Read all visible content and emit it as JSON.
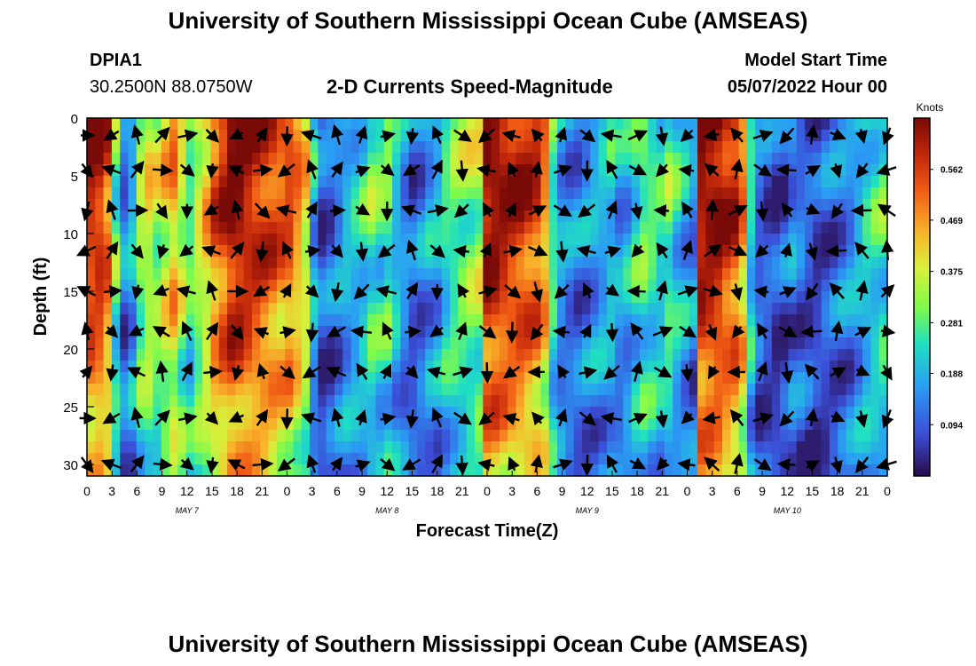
{
  "header": {
    "title": "University of Southern Mississippi Ocean Cube (AMSEAS)",
    "station": "DPIA1",
    "coords": "30.2500N  88.0750W",
    "subtitle": "2-D Currents Speed-Magnitude",
    "model_start_label": "Model Start Time",
    "model_start_value": "05/07/2022 Hour 00"
  },
  "footer": {
    "title": "University of Southern Mississippi Ocean Cube (AMSEAS)"
  },
  "chart_data": {
    "type": "heatmap",
    "xlabel": "Forecast Time(Z)",
    "ylabel": "Depth (ft)",
    "x_ticks": [
      "0",
      "3",
      "6",
      "9",
      "12",
      "15",
      "18",
      "21",
      "0",
      "3",
      "6",
      "9",
      "12",
      "15",
      "18",
      "21",
      "0",
      "3",
      "6",
      "9",
      "12",
      "15",
      "18",
      "21",
      "0",
      "3",
      "6",
      "9",
      "12",
      "15",
      "18",
      "21",
      "0"
    ],
    "y_ticks": [
      "0",
      "5",
      "10",
      "15",
      "20",
      "25",
      "30"
    ],
    "xlim": [
      0,
      96
    ],
    "ylim": [
      0,
      31
    ],
    "day_labels": [
      "MAY 7",
      "MAY 8",
      "MAY 9",
      "MAY 10"
    ],
    "colorbar": {
      "unit": "Knots",
      "ticks": [
        "0.562",
        "0.469",
        "0.375",
        "0.281",
        "0.188",
        "0.094"
      ],
      "range": [
        0,
        0.656
      ]
    },
    "speed_profile_by_hour": [
      0.62,
      0.62,
      0.55,
      0.3,
      0.14,
      0.2,
      0.35,
      0.4,
      0.36,
      0.42,
      0.48,
      0.38,
      0.3,
      0.38,
      0.45,
      0.55,
      0.6,
      0.66,
      0.66,
      0.64,
      0.62,
      0.6,
      0.58,
      0.55,
      0.56,
      0.5,
      0.42,
      0.2,
      0.1,
      0.12,
      0.16,
      0.2,
      0.22,
      0.25,
      0.3,
      0.28,
      0.3,
      0.22,
      0.16,
      0.12,
      0.14,
      0.18,
      0.2,
      0.26,
      0.3,
      0.32,
      0.34,
      0.36,
      0.66,
      0.66,
      0.64,
      0.62,
      0.62,
      0.6,
      0.58,
      0.5,
      0.28,
      0.18,
      0.15,
      0.14,
      0.16,
      0.18,
      0.2,
      0.22,
      0.18,
      0.2,
      0.26,
      0.3,
      0.28,
      0.26,
      0.3,
      0.24,
      0.2,
      0.16,
      0.66,
      0.66,
      0.66,
      0.62,
      0.6,
      0.5,
      0.24,
      0.12,
      0.1,
      0.08,
      0.1,
      0.14,
      0.12,
      0.1,
      0.08,
      0.1,
      0.12,
      0.14,
      0.16,
      0.2,
      0.24,
      0.26,
      0.28
    ],
    "vectors_note": "current direction arrows overlaid at 3-hour and ~3.3 ft intervals"
  }
}
